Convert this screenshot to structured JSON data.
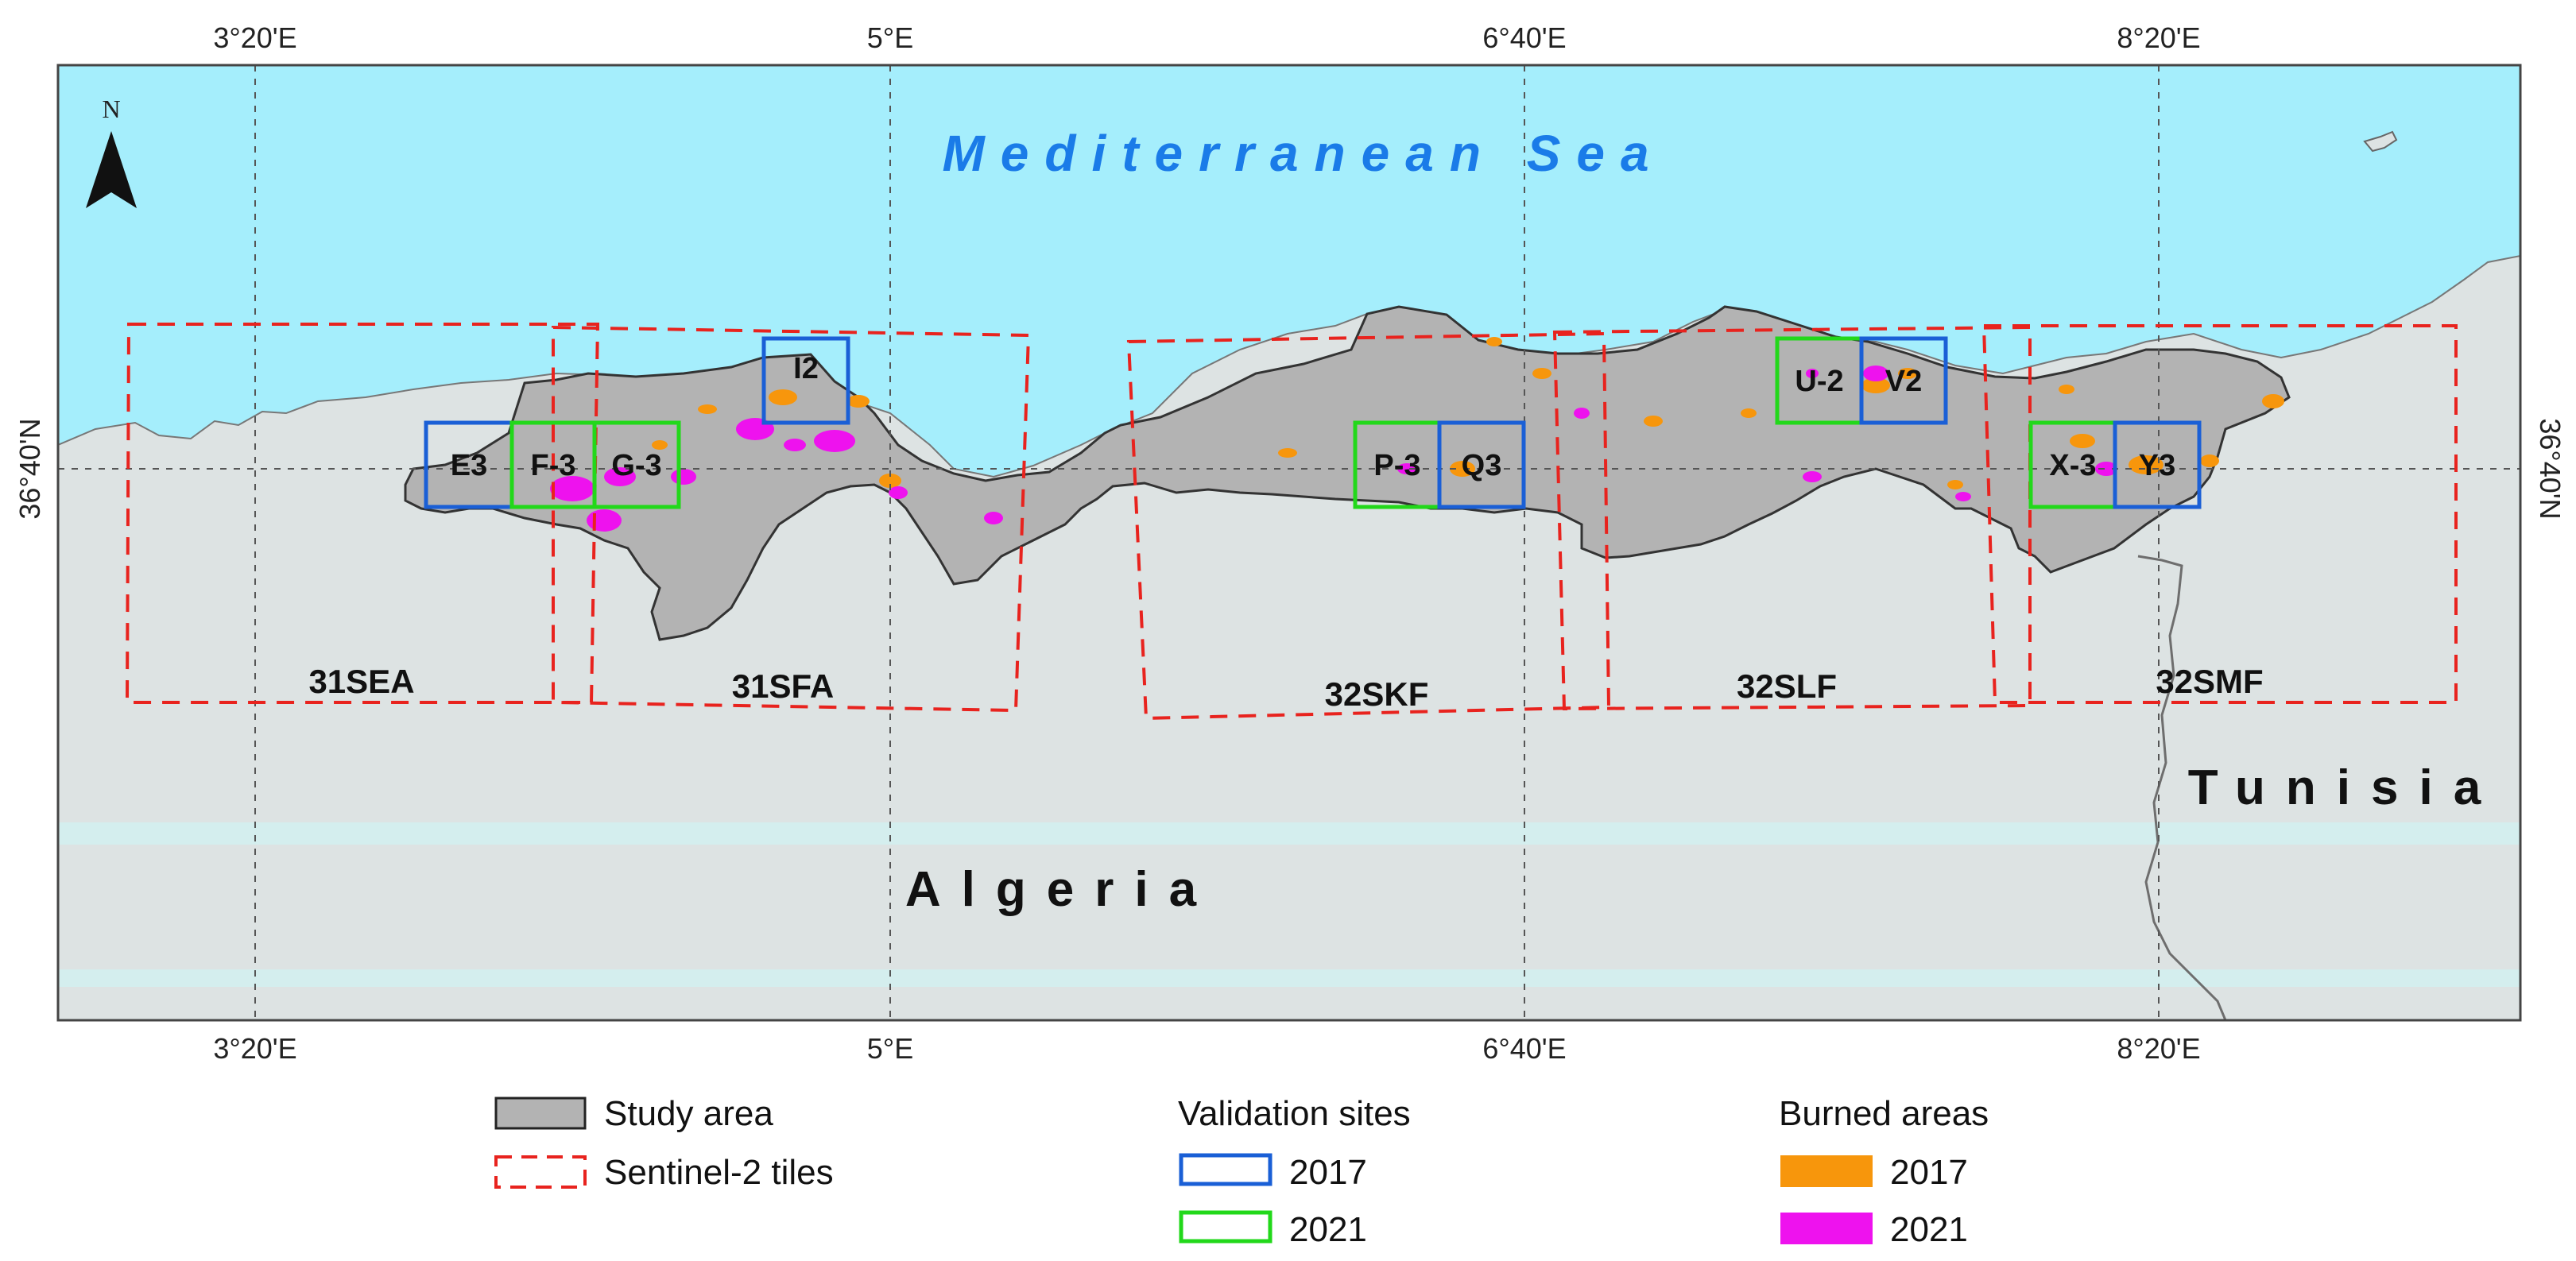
{
  "map": {
    "sea_label": "Mediterranean Sea",
    "countries": [
      "Algeria",
      "Tunisia"
    ],
    "north_label": "N",
    "top_axis": [
      "3°20'E",
      "5°E",
      "6°40'E",
      "8°20'E"
    ],
    "bottom_axis": [
      "3°20'E",
      "5°E",
      "6°40'E",
      "8°20'E"
    ],
    "left_axis": "36°40'N",
    "right_axis": "36°40'N",
    "tiles": [
      "31SEA",
      "31SFA",
      "32SKF",
      "32SLF",
      "32SMF"
    ],
    "sites_2017": [
      "E3",
      "I2",
      "Q3",
      "V2",
      "Y3"
    ],
    "sites_2021": [
      "F-3",
      "G-3",
      "P-3",
      "U-2",
      "X-3"
    ]
  },
  "legend": {
    "study_area": "Study area",
    "tiles": "Sentinel-2 tiles",
    "validation_title": "Validation sites",
    "validation_2017": "2017",
    "validation_2021": "2021",
    "burned_title": "Burned areas",
    "burned_2017": "2017",
    "burned_2021": "2021"
  },
  "colors": {
    "sea": "#a5eefc",
    "land": "#dde3e3",
    "study_area": "#b3b3b3",
    "tiles": "#e8231e",
    "site_2017": "#1a5fd6",
    "site_2021": "#22d81a",
    "burned_2017": "#f7960c",
    "burned_2021": "#ee12ee"
  }
}
